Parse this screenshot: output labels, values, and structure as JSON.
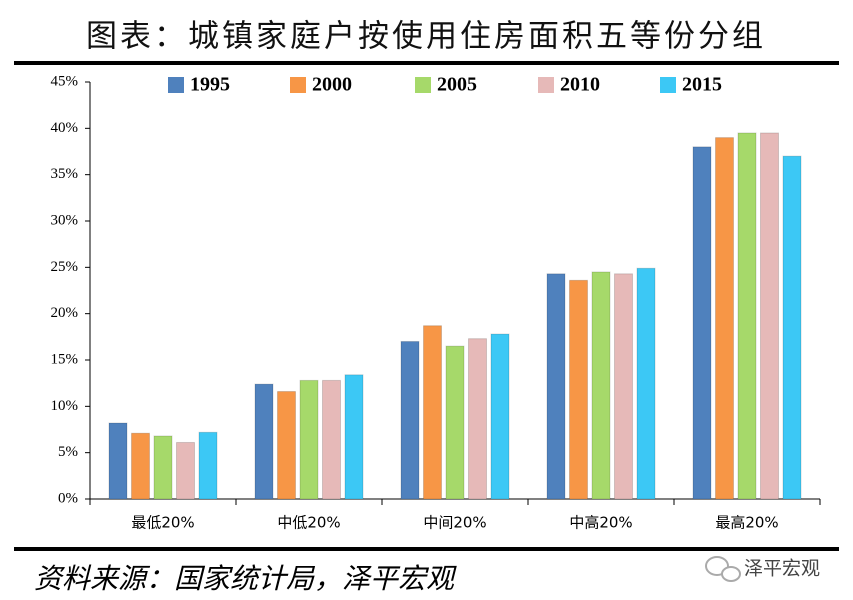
{
  "chart_data": {
    "type": "bar",
    "title": "图表：城镇家庭户按使用住房面积五等份分组",
    "source": "资料来源：国家统计局，泽平宏观",
    "watermark": "泽平宏观",
    "categories": [
      "最低20%",
      "中低20%",
      "中间20%",
      "中高20%",
      "最高20%"
    ],
    "series": [
      {
        "name": "1995",
        "color": "#4f81bd",
        "values": [
          8.2,
          12.4,
          17.0,
          24.3,
          38.0
        ]
      },
      {
        "name": "2000",
        "color": "#f79646",
        "values": [
          7.1,
          11.6,
          18.7,
          23.6,
          39.0
        ]
      },
      {
        "name": "2005",
        "color": "#a6d96a",
        "values": [
          6.8,
          12.8,
          16.5,
          24.5,
          39.5
        ]
      },
      {
        "name": "2010",
        "color": "#e6b9b8",
        "values": [
          6.1,
          12.8,
          17.3,
          24.3,
          39.5
        ]
      },
      {
        "name": "2015",
        "color": "#3cc8f5",
        "values": [
          7.2,
          13.4,
          17.8,
          24.9,
          37.0
        ]
      }
    ],
    "ylim": [
      0,
      45
    ],
    "yticks": [
      {
        "value": 0,
        "label": "0%"
      },
      {
        "value": 5,
        "label": "5%"
      },
      {
        "value": 10,
        "label": "10%"
      },
      {
        "value": 15,
        "label": "15%"
      },
      {
        "value": 20,
        "label": "20%"
      },
      {
        "value": 25,
        "label": "25%"
      },
      {
        "value": 30,
        "label": "30%"
      },
      {
        "value": 35,
        "label": "35%"
      },
      {
        "value": 40,
        "label": "40%"
      },
      {
        "value": 45,
        "label": "45%"
      }
    ],
    "grid": false
  }
}
